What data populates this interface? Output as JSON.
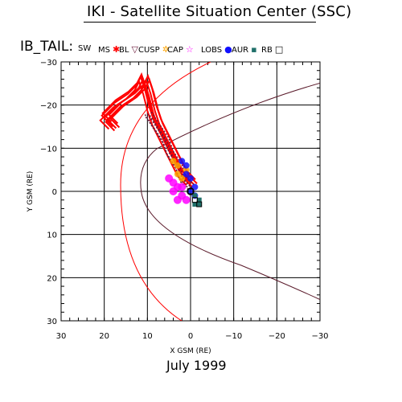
{
  "header": {
    "title": "IKI - Satellite Situation Center (SSC)",
    "footer": "July    1999"
  },
  "legend": {
    "prefix": "IB_TAIL:",
    "items": [
      {
        "label": "SW",
        "symbol": "",
        "color": "#000000"
      },
      {
        "label": "MS",
        "symbol": "✱",
        "color": "#ff0000"
      },
      {
        "label": "BL",
        "symbol": "▽",
        "color": "#6b1b3b"
      },
      {
        "label": "CUSP",
        "symbol": "✲",
        "color": "#ffa500"
      },
      {
        "label": "CAP",
        "symbol": "☆",
        "color": "#ff00ff"
      },
      {
        "label": "LOBS",
        "symbol": "●",
        "color": "#1010ff"
      },
      {
        "label": "AUR",
        "symbol": "▪",
        "color": "#20706a"
      },
      {
        "label": "RB",
        "symbol": "□",
        "color": "#000000"
      }
    ]
  },
  "chart_data": {
    "type": "scatter",
    "xlabel": "X GSM (RE)",
    "ylabel": "Y GSM (RE)",
    "xlim": [
      30,
      -30
    ],
    "ylim": [
      30,
      -30
    ],
    "xticks": [
      30,
      20,
      10,
      0,
      -10,
      -20,
      -30
    ],
    "yticks": [
      -30,
      -20,
      -10,
      0,
      10,
      20,
      30
    ],
    "grid": true,
    "series": [
      {
        "name": "MS",
        "color": "#ff0000",
        "trajectory": [
          [
            18,
            -15
          ],
          [
            20,
            -17
          ],
          [
            17,
            -20
          ],
          [
            14,
            -22
          ],
          [
            12,
            -24
          ],
          [
            11,
            -26
          ],
          [
            10,
            -23
          ],
          [
            9,
            -19
          ],
          [
            8,
            -16
          ],
          [
            6,
            -12
          ],
          [
            4,
            -8
          ],
          [
            2,
            -4
          ],
          [
            0,
            -2
          ]
        ]
      },
      {
        "name": "BL",
        "color": "#6b1b3b",
        "trajectory": [
          [
            10,
            -18
          ],
          [
            8,
            -15
          ],
          [
            6,
            -12
          ],
          [
            5,
            -9
          ],
          [
            3,
            -6
          ],
          [
            2,
            -3
          ],
          [
            0,
            -1
          ]
        ]
      },
      {
        "name": "CUSP",
        "color": "#ffa500",
        "points": [
          [
            4,
            -7
          ],
          [
            3,
            -6
          ],
          [
            3,
            -4
          ],
          [
            2,
            -3
          ],
          [
            1,
            -5
          ]
        ]
      },
      {
        "name": "CAP",
        "color": "#ff00ff",
        "points": [
          [
            5,
            -3
          ],
          [
            4,
            -2
          ],
          [
            3,
            -1
          ],
          [
            2,
            -1
          ],
          [
            4,
            0
          ],
          [
            2,
            1
          ],
          [
            1,
            2
          ],
          [
            3,
            2
          ]
        ]
      },
      {
        "name": "LOBS",
        "color": "#1010ff",
        "points": [
          [
            2,
            -7
          ],
          [
            1,
            -6
          ],
          [
            1,
            -4
          ],
          [
            0,
            -3
          ],
          [
            -1,
            -1
          ],
          [
            0,
            0
          ],
          [
            -1,
            1
          ]
        ]
      },
      {
        "name": "AUR",
        "color": "#20706a",
        "points": [
          [
            -1,
            1
          ],
          [
            -2,
            2
          ],
          [
            -1,
            3
          ],
          [
            -2,
            3
          ]
        ]
      },
      {
        "name": "RB",
        "color": "#000000",
        "points": [
          [
            0,
            0
          ],
          [
            -1,
            2
          ],
          [
            -2,
            3
          ]
        ]
      }
    ],
    "model_boundaries": [
      {
        "name": "bow-shock",
        "color": "#ff0000"
      },
      {
        "name": "magnetopause",
        "color": "#5a1a2a"
      }
    ]
  }
}
